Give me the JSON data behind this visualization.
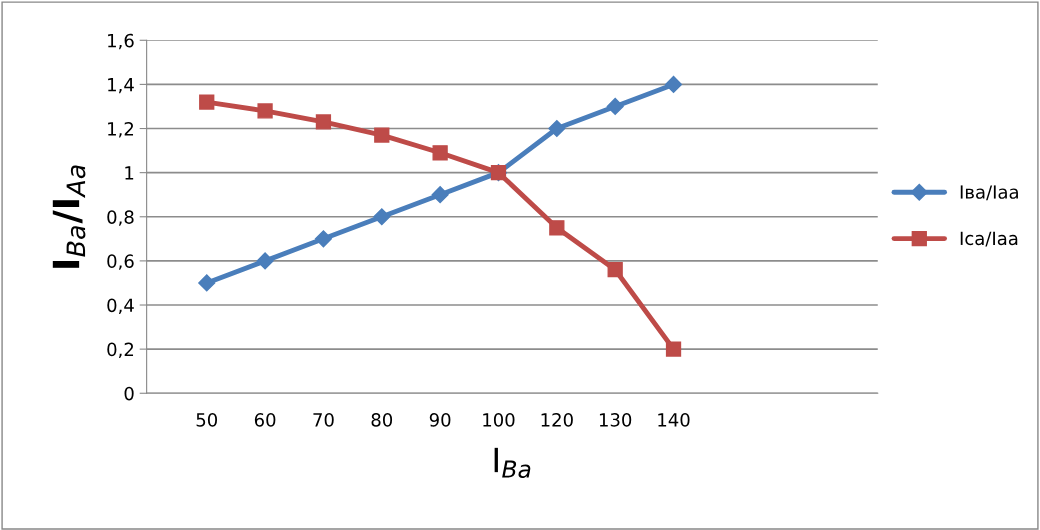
{
  "chart_data": {
    "type": "line",
    "xlabel": "I$_{Ba}$",
    "ylabel": "I$_{Ba}$/I$_{Aa}$",
    "categories": [
      "50",
      "60",
      "70",
      "80",
      "90",
      "100",
      "120",
      "130",
      "140"
    ],
    "series": [
      {
        "name": "Iвa/Iaa",
        "color": "#4a7ebb",
        "marker": "diamond",
        "values": [
          0.5,
          0.6,
          0.7,
          0.8,
          0.9,
          1.0,
          1.2,
          1.3,
          1.4
        ]
      },
      {
        "name": "Ica/Iaa",
        "color": "#be4b48",
        "marker": "square",
        "values": [
          1.32,
          1.28,
          1.23,
          1.17,
          1.09,
          1.0,
          0.75,
          0.56,
          0.2
        ]
      }
    ],
    "ylim": [
      0,
      1.6
    ],
    "yticks": [
      0,
      {
        "value": 0.2,
        "label": "0,2"
      },
      {
        "value": 0.4,
        "label": "0,4"
      },
      {
        "value": 0.6,
        "label": "0,6"
      },
      {
        "value": 0.8,
        "label": "0,8"
      },
      1,
      {
        "value": 1.2,
        "label": "1,2"
      },
      {
        "value": 1.4,
        "label": "1,4"
      },
      {
        "value": 1.6,
        "label": "1,6"
      }
    ],
    "grid": "y",
    "legend": "right",
    "line_style": "solid"
  }
}
